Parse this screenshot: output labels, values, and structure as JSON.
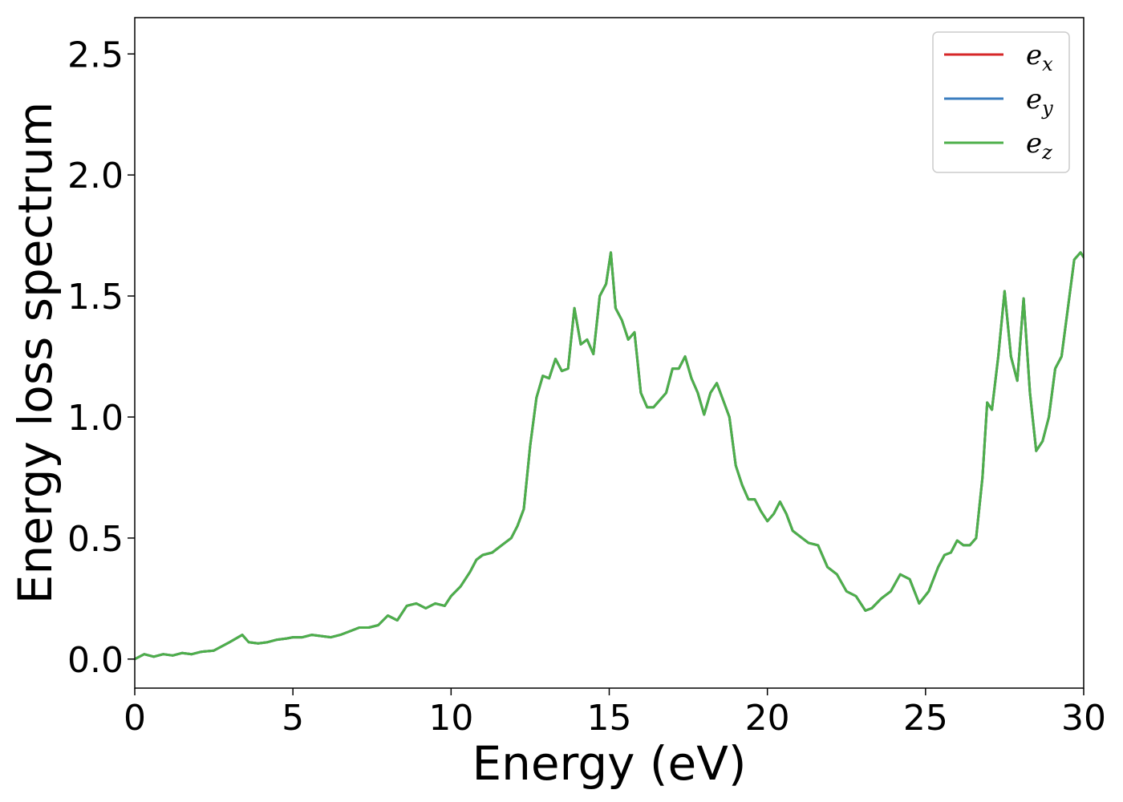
{
  "chart_data": {
    "type": "line",
    "title": "",
    "xlabel": "Energy (eV)",
    "ylabel": "Energy loss spectrum",
    "xlim": [
      0,
      30
    ],
    "ylim": [
      -0.12,
      2.65
    ],
    "xticks": [
      0,
      5,
      10,
      15,
      20,
      25,
      30
    ],
    "xtick_labels": [
      "0",
      "5",
      "10",
      "15",
      "20",
      "25",
      "30"
    ],
    "yticks": [
      0.0,
      0.5,
      1.0,
      1.5,
      2.0,
      2.5
    ],
    "ytick_labels": [
      "0.0",
      "0.5",
      "1.0",
      "1.5",
      "2.0",
      "2.5"
    ],
    "grid": false,
    "legend_position": "top-right",
    "x": [
      0,
      0.3,
      0.6,
      0.9,
      1.2,
      1.5,
      1.8,
      2.1,
      2.5,
      3.0,
      3.4,
      3.6,
      3.9,
      4.2,
      4.5,
      4.8,
      5.0,
      5.3,
      5.6,
      5.9,
      6.2,
      6.5,
      6.8,
      7.1,
      7.4,
      7.7,
      8.0,
      8.3,
      8.6,
      8.9,
      9.2,
      9.5,
      9.8,
      10.0,
      10.3,
      10.6,
      10.8,
      11.0,
      11.3,
      11.6,
      11.9,
      12.1,
      12.3,
      12.5,
      12.7,
      12.9,
      13.1,
      13.3,
      13.5,
      13.7,
      13.9,
      14.1,
      14.3,
      14.5,
      14.7,
      14.9,
      15.05,
      15.2,
      15.4,
      15.6,
      15.8,
      16.0,
      16.2,
      16.4,
      16.6,
      16.8,
      17.0,
      17.2,
      17.4,
      17.6,
      17.8,
      18.0,
      18.2,
      18.4,
      18.6,
      18.8,
      19.0,
      19.2,
      19.4,
      19.6,
      19.8,
      20.0,
      20.2,
      20.4,
      20.6,
      20.8,
      21.0,
      21.3,
      21.6,
      21.9,
      22.2,
      22.5,
      22.8,
      23.1,
      23.3,
      23.6,
      23.9,
      24.2,
      24.5,
      24.8,
      25.1,
      25.4,
      25.6,
      25.8,
      26.0,
      26.2,
      26.4,
      26.6,
      26.8,
      26.95,
      27.1,
      27.3,
      27.5,
      27.7,
      27.9,
      28.1,
      28.3,
      28.5,
      28.7,
      28.9,
      29.1,
      29.3,
      29.5,
      29.7,
      29.9,
      30.0
    ],
    "series": [
      {
        "name": "e_x",
        "color": "#d62728",
        "values": [
          0.0,
          0.02,
          0.01,
          0.02,
          0.015,
          0.025,
          0.02,
          0.03,
          0.035,
          0.07,
          0.1,
          0.07,
          0.065,
          0.07,
          0.08,
          0.085,
          0.09,
          0.09,
          0.1,
          0.095,
          0.09,
          0.1,
          0.115,
          0.13,
          0.13,
          0.14,
          0.18,
          0.16,
          0.22,
          0.23,
          0.21,
          0.23,
          0.22,
          0.26,
          0.3,
          0.36,
          0.41,
          0.43,
          0.44,
          0.47,
          0.5,
          0.55,
          0.62,
          0.88,
          1.08,
          1.17,
          1.16,
          1.24,
          1.19,
          1.2,
          1.45,
          1.3,
          1.32,
          1.26,
          1.5,
          1.55,
          1.68,
          1.45,
          1.4,
          1.32,
          1.35,
          1.1,
          1.04,
          1.04,
          1.07,
          1.1,
          1.2,
          1.2,
          1.25,
          1.16,
          1.1,
          1.01,
          1.1,
          1.14,
          1.07,
          1.0,
          0.8,
          0.72,
          0.66,
          0.66,
          0.61,
          0.57,
          0.6,
          0.65,
          0.6,
          0.53,
          0.51,
          0.48,
          0.47,
          0.38,
          0.35,
          0.28,
          0.26,
          0.2,
          0.21,
          0.25,
          0.28,
          0.35,
          0.33,
          0.23,
          0.28,
          0.38,
          0.43,
          0.44,
          0.49,
          0.47,
          0.47,
          0.5,
          0.75,
          1.06,
          1.03,
          1.25,
          1.52,
          1.25,
          1.15,
          1.49,
          1.1,
          0.86,
          0.9,
          1.0,
          1.2,
          1.25,
          1.45,
          1.65,
          1.68,
          1.66
        ]
      },
      {
        "name": "e_y",
        "color": "#3a7dbf",
        "values": [
          0.0,
          0.02,
          0.01,
          0.02,
          0.015,
          0.025,
          0.02,
          0.03,
          0.035,
          0.07,
          0.1,
          0.07,
          0.065,
          0.07,
          0.08,
          0.085,
          0.09,
          0.09,
          0.1,
          0.095,
          0.09,
          0.1,
          0.115,
          0.13,
          0.13,
          0.14,
          0.18,
          0.16,
          0.22,
          0.23,
          0.21,
          0.23,
          0.22,
          0.26,
          0.3,
          0.36,
          0.41,
          0.43,
          0.44,
          0.47,
          0.5,
          0.55,
          0.62,
          0.88,
          1.08,
          1.17,
          1.16,
          1.24,
          1.19,
          1.2,
          1.45,
          1.3,
          1.32,
          1.26,
          1.5,
          1.55,
          1.68,
          1.45,
          1.4,
          1.32,
          1.35,
          1.1,
          1.04,
          1.04,
          1.07,
          1.1,
          1.2,
          1.2,
          1.25,
          1.16,
          1.1,
          1.01,
          1.1,
          1.14,
          1.07,
          1.0,
          0.8,
          0.72,
          0.66,
          0.66,
          0.61,
          0.57,
          0.6,
          0.65,
          0.6,
          0.53,
          0.51,
          0.48,
          0.47,
          0.38,
          0.35,
          0.28,
          0.26,
          0.2,
          0.21,
          0.25,
          0.28,
          0.35,
          0.33,
          0.23,
          0.28,
          0.38,
          0.43,
          0.44,
          0.49,
          0.47,
          0.47,
          0.5,
          0.75,
          1.06,
          1.03,
          1.25,
          1.52,
          1.25,
          1.15,
          1.49,
          1.1,
          0.86,
          0.9,
          1.0,
          1.2,
          1.25,
          1.45,
          1.65,
          1.68,
          1.66
        ]
      },
      {
        "name": "e_z",
        "color": "#4daf4a",
        "values": [
          0.0,
          0.02,
          0.01,
          0.02,
          0.015,
          0.025,
          0.02,
          0.03,
          0.035,
          0.07,
          0.1,
          0.07,
          0.065,
          0.07,
          0.08,
          0.085,
          0.09,
          0.09,
          0.1,
          0.095,
          0.09,
          0.1,
          0.115,
          0.13,
          0.13,
          0.14,
          0.18,
          0.16,
          0.22,
          0.23,
          0.21,
          0.23,
          0.22,
          0.26,
          0.3,
          0.36,
          0.41,
          0.43,
          0.44,
          0.47,
          0.5,
          0.55,
          0.62,
          0.88,
          1.08,
          1.17,
          1.16,
          1.24,
          1.19,
          1.2,
          1.45,
          1.3,
          1.32,
          1.26,
          1.5,
          1.55,
          1.68,
          1.45,
          1.4,
          1.32,
          1.35,
          1.1,
          1.04,
          1.04,
          1.07,
          1.1,
          1.2,
          1.2,
          1.25,
          1.16,
          1.1,
          1.01,
          1.1,
          1.14,
          1.07,
          1.0,
          0.8,
          0.72,
          0.66,
          0.66,
          0.61,
          0.57,
          0.6,
          0.65,
          0.6,
          0.53,
          0.51,
          0.48,
          0.47,
          0.38,
          0.35,
          0.28,
          0.26,
          0.2,
          0.21,
          0.25,
          0.28,
          0.35,
          0.33,
          0.23,
          0.28,
          0.38,
          0.43,
          0.44,
          0.49,
          0.47,
          0.47,
          0.5,
          0.75,
          1.06,
          1.03,
          1.25,
          1.52,
          1.25,
          1.15,
          1.49,
          1.1,
          0.86,
          0.9,
          1.0,
          1.2,
          1.25,
          1.45,
          1.65,
          1.68,
          1.66
        ]
      }
    ],
    "legend": [
      {
        "base": "e",
        "sub": "x",
        "color": "#d62728"
      },
      {
        "base": "e",
        "sub": "y",
        "color": "#3a7dbf"
      },
      {
        "base": "e",
        "sub": "z",
        "color": "#4daf4a"
      }
    ]
  }
}
